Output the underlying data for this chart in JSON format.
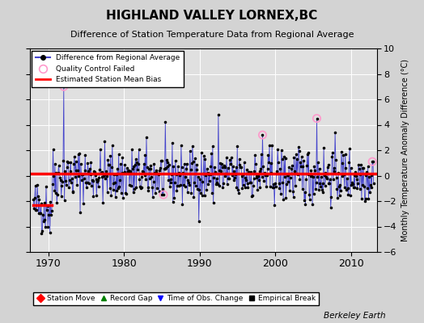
{
  "title": "HIGHLAND VALLEY LORNEX,BC",
  "subtitle": "Difference of Station Temperature Data from Regional Average",
  "ylabel": "Monthly Temperature Anomaly Difference (°C)",
  "ylim": [
    -6,
    10
  ],
  "xlim": [
    1967.5,
    2013.5
  ],
  "xticks": [
    1970,
    1980,
    1990,
    2000,
    2010
  ],
  "yticks": [
    -6,
    -4,
    -2,
    0,
    2,
    4,
    6,
    8,
    10
  ],
  "bias_main": 0.15,
  "bias_early": -2.3,
  "bias_early_end": 1970.5,
  "background_color": "#d3d3d3",
  "plot_bg_color": "#e0e0e0",
  "grid_color": "#ffffff",
  "line_color": "#4444cc",
  "dot_color": "#000000",
  "bias_color": "#ff0000",
  "qc_fail_color": "#ff99cc",
  "watermark": "Berkeley Earth",
  "seed": 42,
  "years_start": 1968.0,
  "years_end": 2013.0,
  "spike_1972_year": 1972.0,
  "spike_1972_val": 7.0,
  "spike_1993_year": 1992.5,
  "spike_1993_val": 4.8,
  "qc_1998_year": 1998.3,
  "qc_1998_val": 3.2,
  "qc_2006_year": 2005.5,
  "qc_2006_val": 4.5,
  "qc_2012_year": 2012.8,
  "qc_2012_val": 1.1,
  "qc_1985_year": 1985.2,
  "qc_1985_val": -1.5,
  "early_low_year": 1970.2,
  "early_low_val": -4.5
}
